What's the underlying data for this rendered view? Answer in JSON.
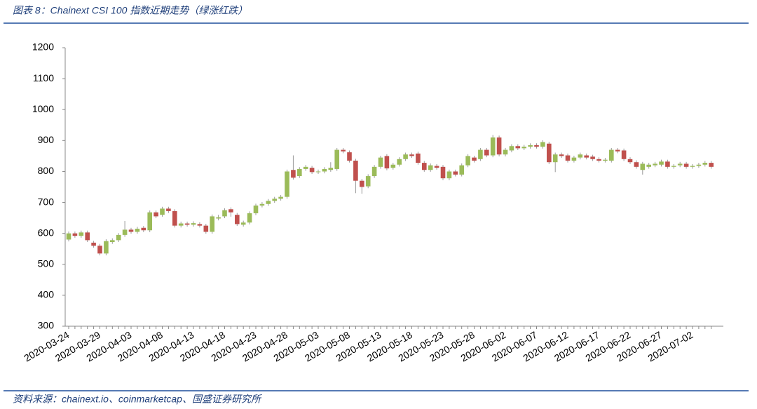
{
  "header": {
    "title": "图表 8：Chainext CSI 100 指数近期走势（绿涨红跌）"
  },
  "footer": {
    "source": "资料来源：chainext.io、coinmarketcap、国盛证券研究所"
  },
  "chart_data": {
    "type": "candlestick",
    "up_color": "#9bbb59",
    "down_color": "#c0504d",
    "ylim": [
      300,
      1200
    ],
    "yticks": [
      300,
      400,
      500,
      600,
      700,
      800,
      900,
      1000,
      1100,
      1200
    ],
    "categories": [
      "2020-03-24",
      null,
      null,
      null,
      null,
      "2020-03-29",
      null,
      null,
      null,
      null,
      "2020-04-03",
      null,
      null,
      null,
      null,
      "2020-04-08",
      null,
      null,
      null,
      null,
      "2020-04-13",
      null,
      null,
      null,
      null,
      "2020-04-18",
      null,
      null,
      null,
      null,
      "2020-04-23",
      null,
      null,
      null,
      null,
      "2020-04-28",
      null,
      null,
      null,
      null,
      "2020-05-03",
      null,
      null,
      null,
      null,
      "2020-05-08",
      null,
      null,
      null,
      null,
      "2020-05-13",
      null,
      null,
      null,
      null,
      "2020-05-18",
      null,
      null,
      null,
      null,
      "2020-05-23",
      null,
      null,
      null,
      null,
      "2020-05-28",
      null,
      null,
      null,
      null,
      "2020-06-02",
      null,
      null,
      null,
      null,
      "2020-06-07",
      null,
      null,
      null,
      null,
      "2020-06-12",
      null,
      null,
      null,
      null,
      "2020-06-17",
      null,
      null,
      null,
      null,
      "2020-06-22",
      null,
      null,
      null,
      null,
      "2020-06-27",
      null,
      null,
      null,
      null,
      "2020-07-02",
      null,
      null,
      null
    ],
    "open": [
      580,
      600,
      592,
      603,
      570,
      560,
      535,
      572,
      578,
      595,
      612,
      605,
      618,
      610,
      668,
      660,
      680,
      672,
      625,
      632,
      628,
      630,
      625,
      605,
      648,
      655,
      678,
      660,
      628,
      635,
      665,
      690,
      695,
      705,
      712,
      718,
      805,
      785,
      808,
      812,
      798,
      800,
      805,
      808,
      870,
      862,
      835,
      770,
      752,
      785,
      815,
      850,
      812,
      822,
      840,
      855,
      858,
      828,
      805,
      818,
      815,
      778,
      800,
      790,
      820,
      845,
      840,
      870,
      852,
      910,
      855,
      868,
      882,
      875,
      880,
      885,
      880,
      890,
      830,
      855,
      852,
      835,
      845,
      852,
      848,
      840,
      835,
      835,
      870,
      868,
      840,
      830,
      805,
      815,
      820,
      822,
      832,
      815,
      820,
      825,
      815,
      818,
      822,
      828
    ],
    "high": [
      606,
      606,
      609,
      609,
      576,
      566,
      581,
      584,
      601,
      640,
      618,
      621,
      624,
      674,
      674,
      686,
      686,
      678,
      638,
      638,
      639,
      636,
      631,
      661,
      660,
      681,
      684,
      666,
      641,
      671,
      696,
      701,
      711,
      718,
      724,
      806,
      852,
      814,
      821,
      818,
      806,
      814,
      830,
      876,
      876,
      868,
      841,
      776,
      791,
      821,
      851,
      856,
      828,
      846,
      861,
      861,
      864,
      834,
      826,
      824,
      821,
      806,
      806,
      826,
      856,
      851,
      876,
      876,
      918,
      916,
      876,
      888,
      888,
      886,
      891,
      891,
      901,
      896,
      861,
      861,
      858,
      851,
      861,
      858,
      854,
      846,
      844,
      876,
      876,
      874,
      846,
      836,
      831,
      828,
      831,
      838,
      838,
      824,
      831,
      831,
      824,
      828,
      834,
      834
    ],
    "low": [
      574,
      586,
      586,
      572,
      554,
      529,
      529,
      566,
      572,
      589,
      599,
      599,
      604,
      604,
      649,
      654,
      666,
      619,
      619,
      622,
      622,
      619,
      599,
      599,
      642,
      649,
      654,
      624,
      622,
      629,
      659,
      684,
      689,
      699,
      706,
      712,
      774,
      779,
      802,
      792,
      792,
      794,
      799,
      802,
      859,
      829,
      730,
      728,
      746,
      779,
      809,
      804,
      806,
      816,
      834,
      844,
      822,
      799,
      799,
      806,
      772,
      772,
      784,
      784,
      814,
      829,
      834,
      846,
      846,
      849,
      849,
      862,
      869,
      869,
      874,
      874,
      874,
      824,
      798,
      844,
      829,
      829,
      839,
      839,
      834,
      829,
      829,
      829,
      859,
      834,
      824,
      809,
      790,
      809,
      814,
      816,
      809,
      809,
      814,
      809,
      809,
      812,
      816,
      809
    ],
    "close": [
      600,
      592,
      603,
      578,
      560,
      535,
      575,
      578,
      595,
      612,
      605,
      615,
      610,
      668,
      655,
      680,
      672,
      625,
      632,
      628,
      633,
      625,
      605,
      655,
      652,
      675,
      668,
      630,
      635,
      665,
      690,
      695,
      705,
      712,
      718,
      800,
      780,
      808,
      815,
      798,
      800,
      808,
      812,
      870,
      865,
      835,
      770,
      750,
      785,
      815,
      845,
      810,
      822,
      840,
      855,
      850,
      828,
      805,
      820,
      812,
      778,
      800,
      790,
      820,
      850,
      835,
      870,
      852,
      910,
      855,
      870,
      882,
      875,
      880,
      885,
      880,
      895,
      830,
      855,
      850,
      835,
      845,
      855,
      845,
      840,
      835,
      838,
      870,
      865,
      840,
      830,
      815,
      825,
      822,
      825,
      832,
      815,
      818,
      825,
      815,
      818,
      822,
      828,
      815
    ]
  }
}
